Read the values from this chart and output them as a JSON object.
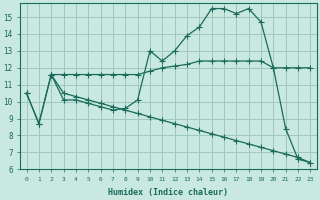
{
  "xlabel": "Humidex (Indice chaleur)",
  "xlim": [
    -0.5,
    23.5
  ],
  "ylim": [
    6,
    15.8
  ],
  "yticks": [
    6,
    7,
    8,
    9,
    10,
    11,
    12,
    13,
    14,
    15
  ],
  "xticks": [
    0,
    1,
    2,
    3,
    4,
    5,
    6,
    7,
    8,
    9,
    10,
    11,
    12,
    13,
    14,
    15,
    16,
    17,
    18,
    19,
    20,
    21,
    22,
    23
  ],
  "bg_color": "#c8e8e0",
  "grid_color": "#a0c8c0",
  "line_color": "#1a6b5a",
  "line1_x": [
    0,
    1,
    2,
    3,
    4,
    5,
    6,
    7,
    8,
    9,
    10,
    11,
    12,
    13,
    14,
    15,
    16,
    17,
    18,
    19,
    20,
    21,
    22,
    23
  ],
  "line1_y": [
    10.5,
    8.7,
    11.6,
    10.1,
    10.1,
    9.9,
    9.7,
    9.5,
    9.6,
    10.1,
    13.0,
    12.4,
    13.0,
    13.9,
    14.4,
    15.5,
    15.5,
    15.2,
    15.5,
    14.7,
    12.0,
    8.4,
    6.6,
    6.4
  ],
  "line2_x": [
    2,
    3,
    4,
    5,
    6,
    7,
    8,
    9,
    10,
    11,
    12,
    13,
    14,
    15,
    16,
    17,
    18,
    19,
    20,
    21,
    22,
    23
  ],
  "line2_y": [
    11.6,
    11.6,
    11.6,
    11.6,
    11.6,
    11.6,
    11.6,
    11.6,
    11.8,
    12.0,
    12.1,
    12.2,
    12.4,
    12.4,
    12.4,
    12.4,
    12.4,
    12.4,
    12.0,
    12.0,
    12.0,
    12.0
  ],
  "line3_x": [
    0,
    1,
    2,
    3,
    4,
    5,
    6,
    7,
    8,
    9,
    10,
    11,
    12,
    13,
    14,
    15,
    16,
    17,
    18,
    19,
    20,
    21,
    22,
    23
  ],
  "line3_y": [
    10.5,
    8.7,
    11.6,
    10.5,
    10.3,
    10.1,
    9.9,
    9.7,
    9.5,
    9.3,
    9.1,
    8.9,
    8.7,
    8.5,
    8.3,
    8.1,
    7.9,
    7.7,
    7.5,
    7.3,
    7.1,
    6.9,
    6.7,
    6.4
  ]
}
